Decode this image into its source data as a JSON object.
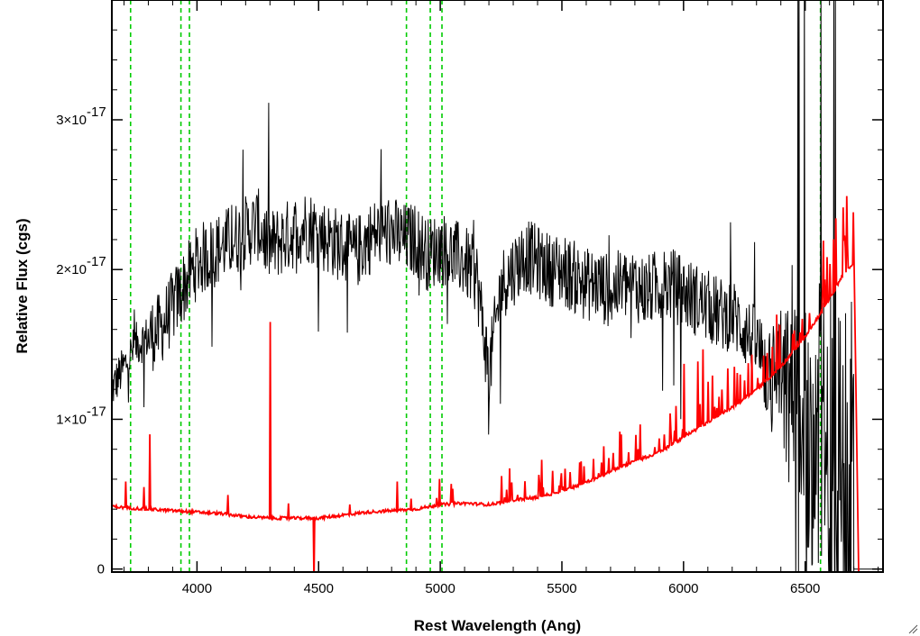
{
  "chart_data": {
    "type": "line",
    "title": "",
    "xlabel": "Rest Wavelength (Ang)",
    "ylabel": "Relative Flux (cgs)",
    "xlim": [
      3650,
      6820
    ],
    "ylim": [
      -2e-19,
      3.8e-17
    ],
    "x_ticks": [
      4000,
      4500,
      5000,
      5500,
      6000,
      6500
    ],
    "x_tick_labels": [
      "4000",
      "4500",
      "5000",
      "5500",
      "6000",
      "6500"
    ],
    "y_ticks": [
      0,
      1e-17,
      2e-17,
      3e-17
    ],
    "y_tick_labels": [
      {
        "mantissa": "0",
        "exponent": ""
      },
      {
        "mantissa": "1×10",
        "exponent": "-17"
      },
      {
        "mantissa": "2×10",
        "exponent": "-17"
      },
      {
        "mantissa": "3×10",
        "exponent": "-17"
      }
    ],
    "grid": false,
    "reference_lines": {
      "color": "#00cc00",
      "style": "dashed",
      "x": [
        3727,
        3934,
        3969,
        4861,
        4959,
        5007,
        6563
      ]
    },
    "series": [
      {
        "color": "#000000",
        "style": "noisy-line",
        "x": [
          3650,
          3700,
          3750,
          3800,
          3850,
          3900,
          3950,
          4000,
          4050,
          4100,
          4150,
          4200,
          4250,
          4300,
          4350,
          4400,
          4450,
          4500,
          4550,
          4600,
          4650,
          4700,
          4750,
          4800,
          4850,
          4900,
          4950,
          5000,
          5050,
          5100,
          5150,
          5200,
          5250,
          5300,
          5350,
          5400,
          5450,
          5500,
          5550,
          5600,
          5650,
          5700,
          5750,
          5800,
          5850,
          5900,
          5950,
          6000,
          6050,
          6100,
          6150,
          6200,
          6250,
          6300,
          6350,
          6400,
          6450,
          6500,
          6550,
          6600,
          6650,
          6700
        ],
        "values": [
          1.2e-17,
          1.35e-17,
          1.5e-17,
          1.55e-17,
          1.6e-17,
          1.75e-17,
          1.9e-17,
          2.05e-17,
          2.1e-17,
          2.15e-17,
          2.2e-17,
          2.25e-17,
          2.3e-17,
          2.15e-17,
          2.2e-17,
          2.25e-17,
          2.3e-17,
          2.25e-17,
          2.2e-17,
          2.15e-17,
          2.1e-17,
          2.2e-17,
          2.25e-17,
          2.25e-17,
          2.2e-17,
          2.2e-17,
          2.1e-17,
          2.15e-17,
          2.1e-17,
          2.05e-17,
          1.95e-17,
          1.3e-17,
          1.9e-17,
          2e-17,
          2.1e-17,
          2.05e-17,
          2e-17,
          2e-17,
          1.95e-17,
          1.9e-17,
          1.9e-17,
          1.85e-17,
          1.9e-17,
          1.9e-17,
          1.85e-17,
          1.9e-17,
          1.9e-17,
          1.85e-17,
          1.8e-17,
          1.75e-17,
          1.7e-17,
          1.7e-17,
          1.6e-17,
          1.5e-17,
          1.3e-17,
          1.2e-17,
          1.1e-17,
          1e-17,
          9e-18,
          8e-18,
          7e-18,
          6e-18
        ]
      },
      {
        "color": "#ff0000",
        "style": "line",
        "x": [
          3650,
          3700,
          3800,
          3900,
          4000,
          4100,
          4200,
          4300,
          4400,
          4500,
          4600,
          4700,
          4800,
          4900,
          5000,
          5100,
          5200,
          5300,
          5400,
          5500,
          5600,
          5700,
          5800,
          5900,
          6000,
          6100,
          6200,
          6300,
          6400,
          6500,
          6600,
          6650,
          6700
        ],
        "values": [
          4.2e-18,
          4.1e-18,
          4e-18,
          3.9e-18,
          3.8e-18,
          3.7e-18,
          3.5e-18,
          3.4e-18,
          3.4e-18,
          3.4e-18,
          3.6e-18,
          3.8e-18,
          3.9e-18,
          4e-18,
          4.3e-18,
          4.4e-18,
          4.3e-18,
          4.6e-18,
          4.8e-18,
          5.2e-18,
          5.8e-18,
          6.5e-18,
          7.2e-18,
          7.8e-18,
          8.8e-18,
          9.8e-18,
          1.08e-17,
          1.2e-17,
          1.35e-17,
          1.55e-17,
          1.8e-17,
          1.95e-17,
          2.05e-17
        ]
      }
    ]
  }
}
